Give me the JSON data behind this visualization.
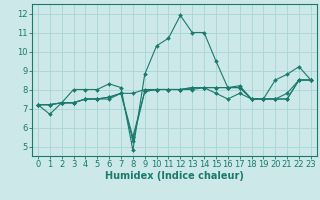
{
  "xlabel": "Humidex (Indice chaleur)",
  "bg_color": "#cce8e8",
  "grid_color": "#aad4d4",
  "line_color": "#1a7a6e",
  "xlim": [
    -0.5,
    23.5
  ],
  "ylim": [
    4.5,
    12.5
  ],
  "xticks": [
    0,
    1,
    2,
    3,
    4,
    5,
    6,
    7,
    8,
    9,
    10,
    11,
    12,
    13,
    14,
    15,
    16,
    17,
    18,
    19,
    20,
    21,
    22,
    23
  ],
  "yticks": [
    5,
    6,
    7,
    8,
    9,
    10,
    11,
    12
  ],
  "series": [
    [
      7.2,
      6.7,
      7.3,
      8.0,
      8.0,
      8.0,
      8.3,
      8.1,
      4.8,
      8.8,
      10.3,
      10.7,
      11.9,
      11.0,
      11.0,
      9.5,
      8.1,
      8.2,
      7.5,
      7.5,
      8.5,
      8.8,
      9.2,
      8.5
    ],
    [
      7.2,
      7.2,
      7.3,
      7.3,
      7.5,
      7.5,
      7.5,
      7.8,
      7.8,
      8.0,
      8.0,
      8.0,
      8.0,
      8.0,
      8.1,
      8.1,
      8.1,
      8.1,
      7.5,
      7.5,
      7.5,
      7.5,
      8.5,
      8.5
    ],
    [
      7.2,
      7.2,
      7.3,
      7.3,
      7.5,
      7.5,
      7.6,
      7.8,
      5.5,
      7.9,
      8.0,
      8.0,
      8.0,
      8.1,
      8.1,
      8.1,
      8.1,
      8.1,
      7.5,
      7.5,
      7.5,
      7.8,
      8.5,
      8.5
    ],
    [
      7.2,
      7.2,
      7.3,
      7.3,
      7.5,
      7.5,
      7.6,
      7.8,
      5.3,
      7.9,
      8.0,
      8.0,
      8.0,
      8.1,
      8.1,
      7.8,
      7.5,
      7.8,
      7.5,
      7.5,
      7.5,
      7.5,
      8.5,
      8.5
    ]
  ],
  "tick_fontsize": 6,
  "xlabel_fontsize": 7,
  "marker_size": 2.0,
  "linewidth": 0.8,
  "spine_color": "#1a7a6e",
  "tick_color": "#1a7a6e"
}
